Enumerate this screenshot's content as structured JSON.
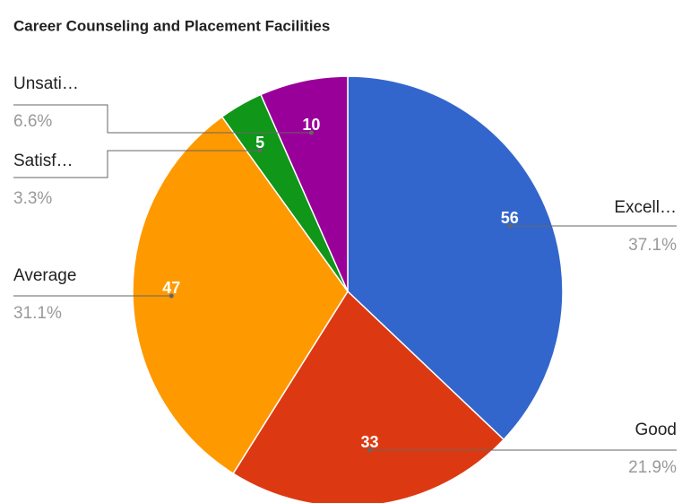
{
  "chart_data": {
    "type": "pie",
    "title": "Career Counseling and Placement Facilities",
    "categories": [
      "Excell…",
      "Good",
      "Average",
      "Satisf…",
      "Unsati…"
    ],
    "values": [
      56,
      33,
      47,
      5,
      10
    ],
    "percentage_labels": [
      "37.1%",
      "21.9%",
      "31.1%",
      "3.3%",
      "6.6%"
    ],
    "colors": [
      "#3366cc",
      "#dc3912",
      "#ff9900",
      "#109618",
      "#990099"
    ]
  }
}
